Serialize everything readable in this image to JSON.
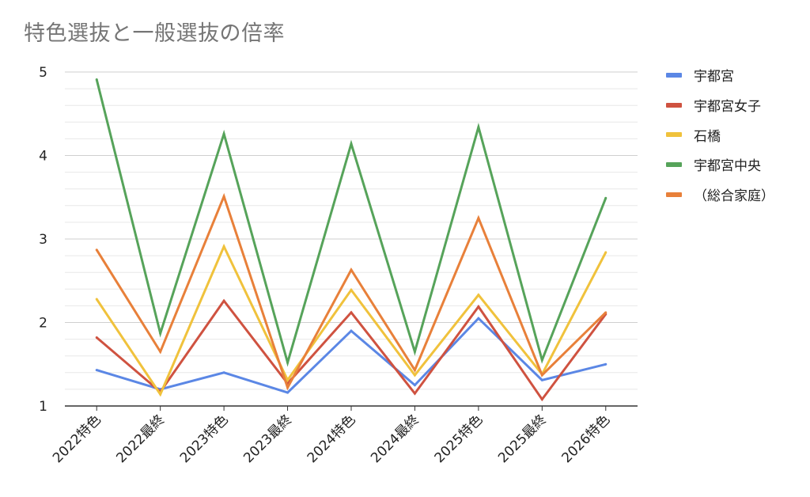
{
  "chart_data": {
    "type": "line",
    "title": "特色選抜と一般選抜の倍率",
    "xlabel": "",
    "ylabel": "",
    "categories": [
      "2022特色",
      "2022最終",
      "2023特色",
      "2023最終",
      "2024特色",
      "2024最終",
      "2025特色",
      "2025最終",
      "2026特色"
    ],
    "ylim": [
      1,
      5
    ],
    "yticks": [
      1,
      2,
      3,
      4,
      5
    ],
    "grid": true,
    "legend_position": "right",
    "series": [
      {
        "name": "宇都宮",
        "color": "#5b87e5",
        "values": [
          1.43,
          1.2,
          1.4,
          1.16,
          1.9,
          1.25,
          2.05,
          1.31,
          1.5
        ]
      },
      {
        "name": "宇都宮女子",
        "color": "#cf5240",
        "values": [
          1.82,
          1.17,
          2.26,
          1.27,
          2.12,
          1.15,
          2.19,
          1.08,
          2.1
        ]
      },
      {
        "name": "石橋",
        "color": "#f0c23c",
        "values": [
          2.28,
          1.14,
          2.91,
          1.31,
          2.39,
          1.37,
          2.33,
          1.38,
          2.84
        ]
      },
      {
        "name": "宇都宮中央",
        "color": "#56a35a",
        "values": [
          4.91,
          1.87,
          4.26,
          1.52,
          4.14,
          1.65,
          4.34,
          1.55,
          3.49
        ]
      },
      {
        "name": "（総合家庭）",
        "color": "#e8803a",
        "values": [
          2.87,
          1.65,
          3.51,
          1.22,
          2.63,
          1.43,
          3.25,
          1.37,
          2.12
        ]
      }
    ]
  }
}
